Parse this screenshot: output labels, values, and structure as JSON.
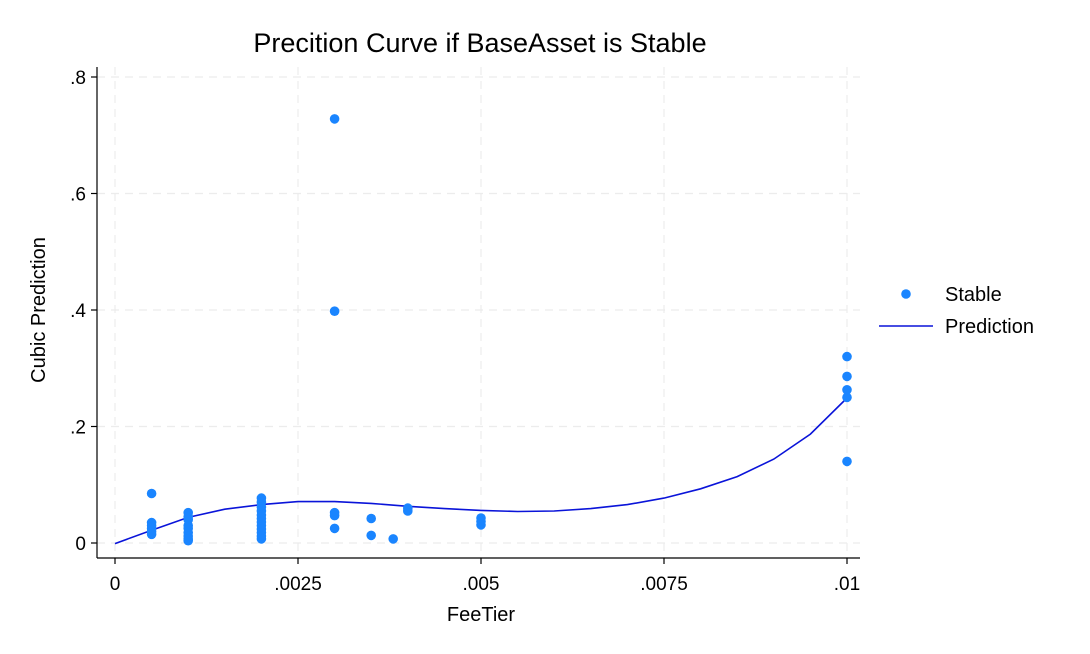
{
  "chart_data": {
    "type": "scatter",
    "title": "Precition Curve if BaseAsset is Stable",
    "xlabel": "FeeTier",
    "ylabel": "Cubic Prediction",
    "xlim": [
      0,
      0.01
    ],
    "ylim": [
      0,
      0.8
    ],
    "x_ticks": [
      {
        "value": 0,
        "label": "0"
      },
      {
        "value": 0.0025,
        "label": ".0025"
      },
      {
        "value": 0.005,
        "label": ".005"
      },
      {
        "value": 0.0075,
        "label": ".0075"
      },
      {
        "value": 0.01,
        "label": ".01"
      }
    ],
    "y_ticks": [
      {
        "value": 0,
        "label": "0"
      },
      {
        "value": 0.2,
        "label": ".2"
      },
      {
        "value": 0.4,
        "label": ".4"
      },
      {
        "value": 0.6,
        "label": ".6"
      },
      {
        "value": 0.8,
        "label": ".8"
      }
    ],
    "grid": true,
    "legend_position": "right",
    "series": [
      {
        "name": "Stable",
        "kind": "scatter",
        "color": "#1a85ff",
        "points": [
          [
            0.0005,
            0.085
          ],
          [
            0.0005,
            0.035
          ],
          [
            0.0005,
            0.03
          ],
          [
            0.0005,
            0.025
          ],
          [
            0.0005,
            0.02
          ],
          [
            0.0005,
            0.015
          ],
          [
            0.001,
            0.052
          ],
          [
            0.001,
            0.045
          ],
          [
            0.001,
            0.04
          ],
          [
            0.001,
            0.03
          ],
          [
            0.001,
            0.025
          ],
          [
            0.001,
            0.018
          ],
          [
            0.001,
            0.012
          ],
          [
            0.001,
            0.007
          ],
          [
            0.001,
            0.004
          ],
          [
            0.002,
            0.077
          ],
          [
            0.002,
            0.07
          ],
          [
            0.002,
            0.062
          ],
          [
            0.002,
            0.055
          ],
          [
            0.002,
            0.048
          ],
          [
            0.002,
            0.042
          ],
          [
            0.002,
            0.036
          ],
          [
            0.002,
            0.03
          ],
          [
            0.002,
            0.024
          ],
          [
            0.002,
            0.018
          ],
          [
            0.002,
            0.012
          ],
          [
            0.002,
            0.007
          ],
          [
            0.003,
            0.728
          ],
          [
            0.003,
            0.398
          ],
          [
            0.003,
            0.052
          ],
          [
            0.003,
            0.047
          ],
          [
            0.003,
            0.025
          ],
          [
            0.0035,
            0.042
          ],
          [
            0.0035,
            0.013
          ],
          [
            0.0038,
            0.007
          ],
          [
            0.004,
            0.06
          ],
          [
            0.004,
            0.055
          ],
          [
            0.005,
            0.043
          ],
          [
            0.005,
            0.037
          ],
          [
            0.005,
            0.031
          ],
          [
            0.01,
            0.32
          ],
          [
            0.01,
            0.286
          ],
          [
            0.01,
            0.263
          ],
          [
            0.01,
            0.25
          ],
          [
            0.01,
            0.14
          ]
        ]
      },
      {
        "name": "Prediction",
        "kind": "line",
        "color": "#0a14d9",
        "points": [
          [
            0,
            -0.001
          ],
          [
            0.0005,
            0.022
          ],
          [
            0.001,
            0.044
          ],
          [
            0.0015,
            0.058
          ],
          [
            0.002,
            0.066
          ],
          [
            0.0025,
            0.071
          ],
          [
            0.003,
            0.071
          ],
          [
            0.0035,
            0.068
          ],
          [
            0.004,
            0.063
          ],
          [
            0.0045,
            0.059
          ],
          [
            0.005,
            0.056
          ],
          [
            0.0055,
            0.054
          ],
          [
            0.006,
            0.055
          ],
          [
            0.0065,
            0.059
          ],
          [
            0.007,
            0.066
          ],
          [
            0.0075,
            0.077
          ],
          [
            0.008,
            0.093
          ],
          [
            0.0085,
            0.114
          ],
          [
            0.009,
            0.144
          ],
          [
            0.0095,
            0.187
          ],
          [
            0.01,
            0.249
          ]
        ]
      }
    ]
  }
}
